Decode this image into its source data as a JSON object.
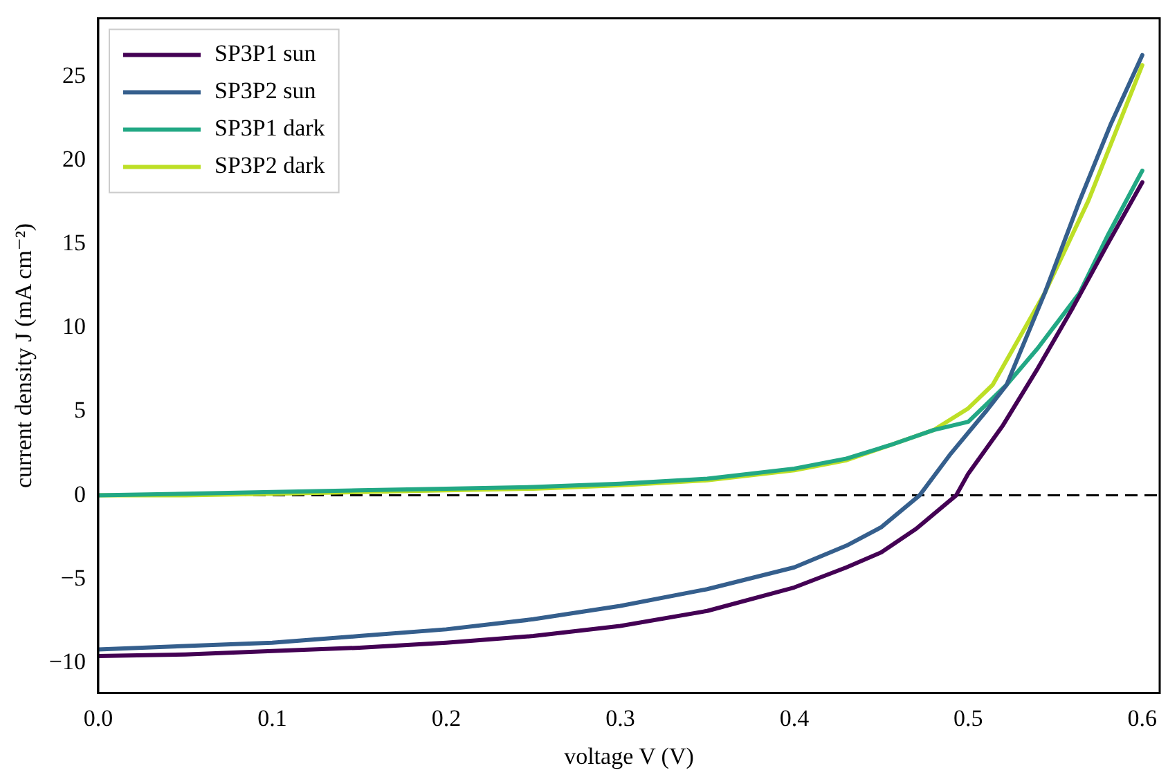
{
  "chart_data": {
    "type": "line",
    "xlabel": "voltage V (V)",
    "ylabel": "current density J (mA cm⁻²)",
    "xlim": [
      0,
      0.61
    ],
    "ylim": [
      -11.8,
      28.5
    ],
    "xticks": [
      {
        "value": 0,
        "label": "0.0"
      },
      {
        "value": 0.1,
        "label": "0.1"
      },
      {
        "value": 0.2,
        "label": "0.2"
      },
      {
        "value": 0.3,
        "label": "0.3"
      },
      {
        "value": 0.4,
        "label": "0.4"
      },
      {
        "value": 0.5,
        "label": "0.5"
      },
      {
        "value": 0.6,
        "label": "0.6"
      }
    ],
    "yticks": [
      {
        "value": -10,
        "label": "−10"
      },
      {
        "value": -5,
        "label": "−5"
      },
      0,
      5,
      10,
      15,
      20,
      25
    ],
    "grid": false,
    "legend": "top left",
    "marker": "none",
    "line_style": "solid",
    "ref_lines": [
      {
        "axis": "y",
        "value": 0,
        "label": null,
        "color": "#000000",
        "line_style": "dashed"
      }
    ],
    "series": [
      {
        "name": "SP3P1 sun",
        "color": "#440154",
        "x": [
          0,
          0.05,
          0.1,
          0.15,
          0.2,
          0.25,
          0.3,
          0.35,
          0.4,
          0.43,
          0.45,
          0.47,
          0.493,
          0.5,
          0.52,
          0.54,
          0.56,
          0.58,
          0.6
        ],
        "values": [
          -9.6,
          -9.5,
          -9.3,
          -9.1,
          -8.8,
          -8.4,
          -7.8,
          -6.9,
          -5.5,
          -4.3,
          -3.4,
          -2.0,
          0,
          1.3,
          4.2,
          7.6,
          11.2,
          15.0,
          18.7
        ]
      },
      {
        "name": "SP3P2 sun",
        "color": "#355f8d",
        "x": [
          0,
          0.05,
          0.1,
          0.15,
          0.2,
          0.25,
          0.3,
          0.35,
          0.4,
          0.43,
          0.45,
          0.472,
          0.49,
          0.51,
          0.522,
          0.544,
          0.564,
          0.582,
          0.6
        ],
        "values": [
          -9.2,
          -9.0,
          -8.8,
          -8.4,
          -8.0,
          -7.4,
          -6.6,
          -5.6,
          -4.3,
          -3.0,
          -1.9,
          0,
          2.5,
          5.0,
          6.6,
          12.1,
          17.6,
          22.2,
          26.3
        ]
      },
      {
        "name": "SP3P1 dark",
        "color": "#22a884",
        "x": [
          0,
          0.05,
          0.1,
          0.15,
          0.2,
          0.25,
          0.3,
          0.35,
          0.4,
          0.43,
          0.455,
          0.48,
          0.5,
          0.522,
          0.54,
          0.564,
          0.58,
          0.6
        ],
        "values": [
          0,
          0.1,
          0.2,
          0.3,
          0.4,
          0.5,
          0.7,
          1.0,
          1.6,
          2.2,
          3.0,
          3.9,
          4.4,
          6.6,
          8.8,
          12.1,
          15.5,
          19.4
        ]
      },
      {
        "name": "SP3P2 dark",
        "color": "#bddf26",
        "x": [
          0,
          0.05,
          0.1,
          0.15,
          0.2,
          0.25,
          0.3,
          0.35,
          0.4,
          0.43,
          0.455,
          0.48,
          0.5,
          0.514,
          0.544,
          0.569,
          0.6
        ],
        "values": [
          0,
          0,
          0.1,
          0.2,
          0.3,
          0.4,
          0.6,
          0.9,
          1.5,
          2.1,
          3.0,
          3.9,
          5.2,
          6.6,
          12.1,
          17.6,
          25.7
        ]
      }
    ]
  }
}
